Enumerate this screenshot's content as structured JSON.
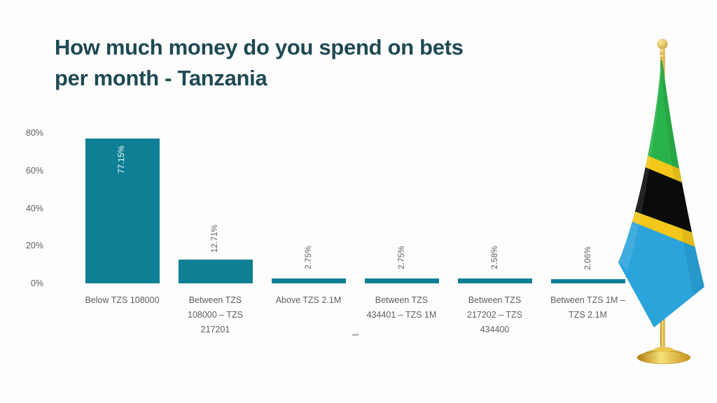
{
  "title": {
    "text": "How much money do you spend on bets per month - Tanzania",
    "color": "#1E4953"
  },
  "chart_data": {
    "type": "bar",
    "title": "How much money do you spend on bets per month - Tanzania",
    "categories": [
      "Below TZS 108000",
      "Between TZS 108000 – TZS 217201",
      "Above TZS 2.1M",
      "Between TZS 434401 – TZS 1M",
      "Between TZS 217202 – TZS 434400",
      "Between TZS 1M – TZS 2.1M"
    ],
    "values": [
      77.15,
      12.71,
      2.75,
      2.75,
      2.58,
      2.06
    ],
    "value_labels": [
      "77.15%",
      "12.71%",
      "2.75%",
      "2.75%",
      "2.58%",
      "2.06%"
    ],
    "value_label_orientation": "vertical",
    "y_ticks": [
      "0%",
      "20%",
      "40%",
      "60%",
      "80%"
    ],
    "ylim": [
      0,
      83
    ],
    "xlabel": "",
    "ylabel": "",
    "grid": false,
    "legend": "none",
    "bar_color": "#0E7F94",
    "axis_label_color": "#605E5C",
    "inside_label_color": "#FFFFFF"
  },
  "flag": {
    "name": "Tanzania table flag",
    "colors": {
      "green": "#29B34A",
      "yellow": "#F4C71B",
      "black": "#0B0B0B",
      "blue": "#2BA4DB",
      "gold_dark": "#B07D10",
      "gold_light": "#F6E27A",
      "gold_mid": "#C8921A"
    }
  }
}
